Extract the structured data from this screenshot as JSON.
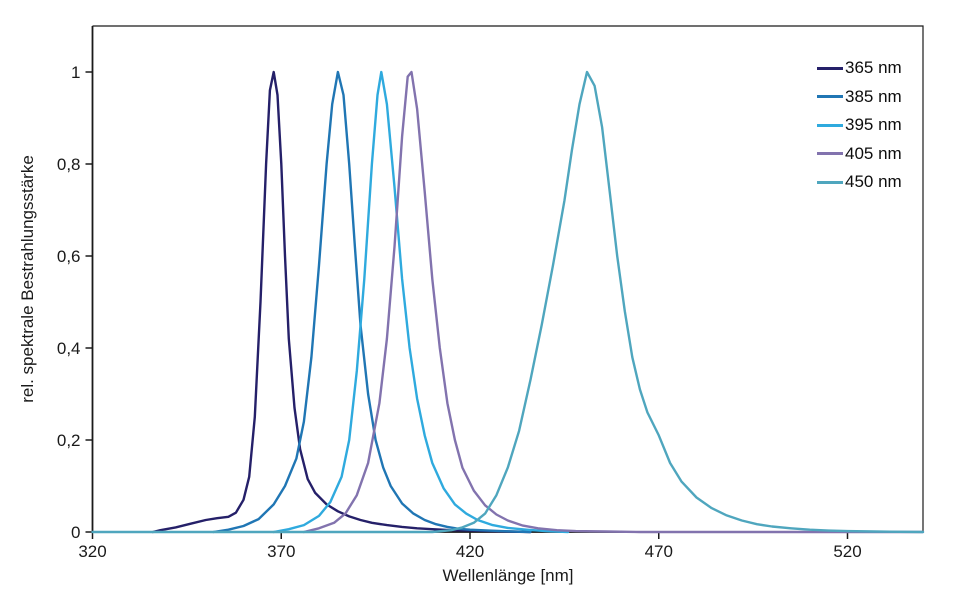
{
  "figure": {
    "background": "#ffffff",
    "axis_color": "#1a1a1a",
    "text_color": "#1a1a1a"
  },
  "chart_data": {
    "type": "line",
    "title": "",
    "xlabel": "Wellenlänge [nm]",
    "ylabel": "rel. spektrale Bestrahlungsstärke",
    "xlim": [
      320,
      540
    ],
    "ylim": [
      0,
      1.1
    ],
    "grid": false,
    "legend_position": "top-right",
    "x_ticks": [
      {
        "value": 320,
        "label": "320"
      },
      {
        "value": 370,
        "label": "370"
      },
      {
        "value": 420,
        "label": "420"
      },
      {
        "value": 470,
        "label": "470"
      },
      {
        "value": 520,
        "label": "520"
      }
    ],
    "y_ticks": [
      {
        "value": 0,
        "label": "0"
      },
      {
        "value": 0.2,
        "label": "0,2"
      },
      {
        "value": 0.4,
        "label": "0,4"
      },
      {
        "value": 0.6,
        "label": "0,6"
      },
      {
        "value": 0.8,
        "label": "0,8"
      },
      {
        "value": 1,
        "label": "1"
      }
    ],
    "series": [
      {
        "name": "365 nm",
        "color": "#252069",
        "points": [
          [
            336,
            0
          ],
          [
            338,
            0.004
          ],
          [
            342,
            0.01
          ],
          [
            346,
            0.018
          ],
          [
            350,
            0.026
          ],
          [
            353,
            0.03
          ],
          [
            356,
            0.033
          ],
          [
            358,
            0.042
          ],
          [
            360,
            0.07
          ],
          [
            361.5,
            0.12
          ],
          [
            363,
            0.25
          ],
          [
            364.5,
            0.5
          ],
          [
            366,
            0.8
          ],
          [
            367,
            0.96
          ],
          [
            368,
            1.0
          ],
          [
            369,
            0.95
          ],
          [
            370,
            0.8
          ],
          [
            371,
            0.6
          ],
          [
            372,
            0.42
          ],
          [
            373.5,
            0.27
          ],
          [
            375,
            0.18
          ],
          [
            377,
            0.115
          ],
          [
            379,
            0.085
          ],
          [
            382,
            0.06
          ],
          [
            385,
            0.045
          ],
          [
            388,
            0.034
          ],
          [
            391,
            0.026
          ],
          [
            394,
            0.02
          ],
          [
            398,
            0.015
          ],
          [
            402,
            0.011
          ],
          [
            406,
            0.008
          ],
          [
            410,
            0.006
          ],
          [
            415,
            0.004
          ],
          [
            420,
            0.003
          ],
          [
            425,
            0.002
          ],
          [
            430,
            0.001
          ],
          [
            436,
            0
          ]
        ]
      },
      {
        "name": "385 nm",
        "color": "#2076B4",
        "points": [
          [
            352,
            0
          ],
          [
            356,
            0.005
          ],
          [
            360,
            0.013
          ],
          [
            364,
            0.028
          ],
          [
            368,
            0.06
          ],
          [
            371,
            0.1
          ],
          [
            374,
            0.16
          ],
          [
            376,
            0.24
          ],
          [
            378,
            0.38
          ],
          [
            380,
            0.58
          ],
          [
            382,
            0.8
          ],
          [
            383.5,
            0.93
          ],
          [
            385,
            1.0
          ],
          [
            386.5,
            0.95
          ],
          [
            388,
            0.8
          ],
          [
            389.5,
            0.62
          ],
          [
            391,
            0.45
          ],
          [
            393,
            0.3
          ],
          [
            395,
            0.2
          ],
          [
            397,
            0.14
          ],
          [
            399,
            0.1
          ],
          [
            402,
            0.062
          ],
          [
            405,
            0.04
          ],
          [
            408,
            0.026
          ],
          [
            411,
            0.017
          ],
          [
            414,
            0.011
          ],
          [
            417,
            0.007
          ],
          [
            420,
            0.005
          ],
          [
            425,
            0.003
          ],
          [
            430,
            0.0015
          ],
          [
            436,
            0
          ]
        ]
      },
      {
        "name": "395 nm",
        "color": "#2FAADE",
        "points": [
          [
            368,
            0
          ],
          [
            372,
            0.006
          ],
          [
            376,
            0.015
          ],
          [
            380,
            0.035
          ],
          [
            383,
            0.065
          ],
          [
            386,
            0.12
          ],
          [
            388,
            0.2
          ],
          [
            390,
            0.35
          ],
          [
            392,
            0.55
          ],
          [
            394,
            0.8
          ],
          [
            395.5,
            0.95
          ],
          [
            396.5,
            1.0
          ],
          [
            398,
            0.93
          ],
          [
            400,
            0.75
          ],
          [
            402,
            0.55
          ],
          [
            404,
            0.4
          ],
          [
            406,
            0.29
          ],
          [
            408,
            0.21
          ],
          [
            410,
            0.15
          ],
          [
            413,
            0.095
          ],
          [
            416,
            0.06
          ],
          [
            419,
            0.04
          ],
          [
            422,
            0.026
          ],
          [
            426,
            0.015
          ],
          [
            430,
            0.009
          ],
          [
            435,
            0.005
          ],
          [
            440,
            0.002
          ],
          [
            446,
            0
          ]
        ]
      },
      {
        "name": "405 nm",
        "color": "#8273AE",
        "points": [
          [
            376,
            0
          ],
          [
            380,
            0.008
          ],
          [
            384,
            0.02
          ],
          [
            387,
            0.04
          ],
          [
            390,
            0.08
          ],
          [
            393,
            0.15
          ],
          [
            396,
            0.28
          ],
          [
            398,
            0.42
          ],
          [
            400,
            0.62
          ],
          [
            402,
            0.86
          ],
          [
            403.5,
            0.99
          ],
          [
            404.5,
            1.0
          ],
          [
            406,
            0.92
          ],
          [
            408,
            0.74
          ],
          [
            410,
            0.55
          ],
          [
            412,
            0.4
          ],
          [
            414,
            0.28
          ],
          [
            416,
            0.2
          ],
          [
            418,
            0.14
          ],
          [
            421,
            0.09
          ],
          [
            424,
            0.058
          ],
          [
            427,
            0.038
          ],
          [
            430,
            0.025
          ],
          [
            434,
            0.014
          ],
          [
            438,
            0.008
          ],
          [
            443,
            0.004
          ],
          [
            448,
            0.002
          ],
          [
            456,
            0.001
          ],
          [
            465,
            0
          ],
          [
            540,
            0
          ]
        ]
      },
      {
        "name": "450 nm",
        "color": "#4FA6BE",
        "points": [
          [
            320,
            0
          ],
          [
            410,
            0
          ],
          [
            415,
            0.004
          ],
          [
            418,
            0.01
          ],
          [
            421,
            0.02
          ],
          [
            424,
            0.04
          ],
          [
            427,
            0.08
          ],
          [
            430,
            0.14
          ],
          [
            433,
            0.22
          ],
          [
            436,
            0.33
          ],
          [
            439,
            0.45
          ],
          [
            442,
            0.58
          ],
          [
            445,
            0.72
          ],
          [
            447,
            0.83
          ],
          [
            449,
            0.93
          ],
          [
            451,
            1.0
          ],
          [
            453,
            0.97
          ],
          [
            455,
            0.88
          ],
          [
            457,
            0.74
          ],
          [
            459,
            0.6
          ],
          [
            461,
            0.48
          ],
          [
            463,
            0.38
          ],
          [
            465,
            0.31
          ],
          [
            467,
            0.26
          ],
          [
            470,
            0.21
          ],
          [
            473,
            0.15
          ],
          [
            476,
            0.11
          ],
          [
            480,
            0.075
          ],
          [
            484,
            0.052
          ],
          [
            488,
            0.036
          ],
          [
            492,
            0.025
          ],
          [
            496,
            0.017
          ],
          [
            500,
            0.012
          ],
          [
            505,
            0.008
          ],
          [
            510,
            0.005
          ],
          [
            515,
            0.003
          ],
          [
            520,
            0.002
          ],
          [
            527,
            0.001
          ],
          [
            540,
            0
          ]
        ]
      }
    ]
  }
}
